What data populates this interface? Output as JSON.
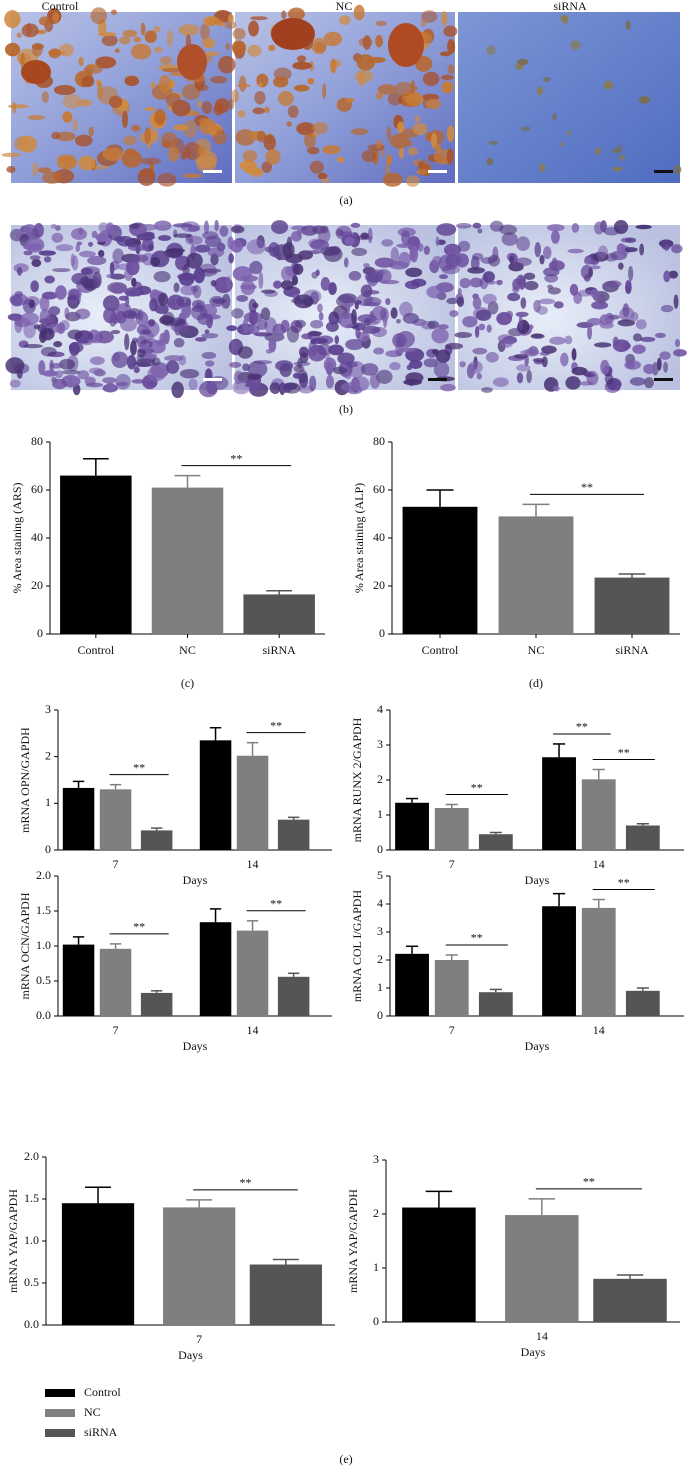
{
  "figure": {
    "panel_a": {
      "label": "(a)",
      "columns": [
        "Control",
        "NC",
        "siRNA"
      ]
    },
    "panel_b_label": "(b)",
    "panel_e_label": "(e)"
  },
  "legend": [
    {
      "name": "Control",
      "color": "#000000"
    },
    {
      "name": "NC",
      "color": "#7f7f7f"
    },
    {
      "name": "siRNA",
      "color": "#555555"
    }
  ],
  "chart_data": [
    {
      "type": "bar",
      "panel_label": "(c)",
      "ylabel": "% Area staining (ARS)",
      "categories": [
        "Control",
        "NC",
        "siRNA"
      ],
      "values": [
        66,
        61,
        16.5
      ],
      "errors": [
        7,
        5,
        1.5
      ],
      "colors": [
        "#000000",
        "#7f7f7f",
        "#555555"
      ],
      "ylim": [
        0,
        80
      ],
      "yticks": [
        0,
        20,
        40,
        60,
        80
      ],
      "annotations": [
        {
          "text": "**",
          "between": [
            1,
            2
          ]
        }
      ]
    },
    {
      "type": "bar",
      "panel_label": "(d)",
      "ylabel": "% Area staining (ALP)",
      "categories": [
        "Control",
        "NC",
        "siRNA"
      ],
      "values": [
        53,
        49,
        23.5
      ],
      "errors": [
        7,
        5,
        1.5
      ],
      "colors": [
        "#000000",
        "#7f7f7f",
        "#555555"
      ],
      "ylim": [
        0,
        80
      ],
      "yticks": [
        0,
        20,
        40,
        60,
        80
      ],
      "annotations": [
        {
          "text": "**",
          "between": [
            1,
            2
          ]
        }
      ]
    },
    {
      "type": "grouped_bar",
      "ylabel": "mRNA OPN/GAPDH",
      "xlabel": "Days",
      "categories": [
        "7",
        "14"
      ],
      "series": [
        {
          "values": [
            1.33,
            2.35
          ],
          "errors": [
            0.14,
            0.27
          ]
        },
        {
          "values": [
            1.3,
            2.02
          ],
          "errors": [
            0.1,
            0.28
          ]
        },
        {
          "values": [
            0.42,
            0.65
          ],
          "errors": [
            0.05,
            0.05
          ]
        }
      ],
      "ylim": [
        0,
        3
      ],
      "yticks": [
        0,
        1,
        2,
        3
      ],
      "annotations": [
        {
          "text": "**",
          "group": 0,
          "between": [
            1,
            2
          ]
        },
        {
          "text": "**",
          "group": 1,
          "between": [
            1,
            2
          ]
        }
      ]
    },
    {
      "type": "grouped_bar",
      "ylabel": "mRNA RUNX 2/GAPDH",
      "xlabel": "Days",
      "categories": [
        "7",
        "14"
      ],
      "series": [
        {
          "values": [
            1.35,
            2.65
          ],
          "errors": [
            0.12,
            0.38
          ]
        },
        {
          "values": [
            1.2,
            2.02
          ],
          "errors": [
            0.1,
            0.28
          ]
        },
        {
          "values": [
            0.45,
            0.7
          ],
          "errors": [
            0.05,
            0.05
          ]
        }
      ],
      "ylim": [
        0,
        4
      ],
      "yticks": [
        0,
        1,
        2,
        3,
        4
      ],
      "annotations": [
        {
          "text": "**",
          "group": 0,
          "between": [
            1,
            2
          ]
        },
        {
          "text": "**",
          "group": 1,
          "between": [
            0,
            1
          ]
        },
        {
          "text": "**",
          "group": 1,
          "between": [
            1,
            2
          ]
        }
      ]
    },
    {
      "type": "grouped_bar",
      "ylabel": "mRNA OCN/GAPDH",
      "xlabel": "Days",
      "categories": [
        "7",
        "14"
      ],
      "series": [
        {
          "values": [
            1.02,
            1.34
          ],
          "errors": [
            0.11,
            0.19
          ]
        },
        {
          "values": [
            0.96,
            1.22
          ],
          "errors": [
            0.07,
            0.14
          ]
        },
        {
          "values": [
            0.33,
            0.56
          ],
          "errors": [
            0.03,
            0.05
          ]
        }
      ],
      "ylim": [
        0,
        2
      ],
      "yticks": [
        {
          "value": 0,
          "label": "0.0"
        },
        0.5,
        {
          "value": 1,
          "label": "1.0"
        },
        1.5,
        {
          "value": 2,
          "label": "2.0"
        }
      ],
      "annotations": [
        {
          "text": "**",
          "group": 0,
          "between": [
            1,
            2
          ]
        },
        {
          "text": "**",
          "group": 1,
          "between": [
            1,
            2
          ]
        }
      ]
    },
    {
      "type": "grouped_bar",
      "ylabel": "mRNA COL I/GAPDH",
      "xlabel": "Days",
      "categories": [
        "7",
        "14"
      ],
      "series": [
        {
          "values": [
            2.22,
            3.92
          ],
          "errors": [
            0.27,
            0.45
          ]
        },
        {
          "values": [
            2.0,
            3.86
          ],
          "errors": [
            0.18,
            0.3
          ]
        },
        {
          "values": [
            0.85,
            0.9
          ],
          "errors": [
            0.1,
            0.1
          ]
        }
      ],
      "ylim": [
        0,
        5
      ],
      "yticks": [
        0,
        1,
        2,
        3,
        4,
        5
      ],
      "annotations": [
        {
          "text": "**",
          "group": 0,
          "between": [
            1,
            2
          ]
        },
        {
          "text": "**",
          "group": 1,
          "between": [
            1,
            2
          ]
        }
      ]
    },
    {
      "type": "grouped_bar",
      "ylabel": "mRNA YAP/GAPDH",
      "xlabel": "Days",
      "categories": [
        "7"
      ],
      "series": [
        {
          "values": [
            1.45
          ],
          "errors": [
            0.19
          ]
        },
        {
          "values": [
            1.4
          ],
          "errors": [
            0.09
          ]
        },
        {
          "values": [
            0.72
          ],
          "errors": [
            0.06
          ]
        }
      ],
      "ylim": [
        0,
        2
      ],
      "yticks": [
        {
          "value": 0,
          "label": "0.0"
        },
        0.5,
        {
          "value": 1,
          "label": "1.0"
        },
        1.5,
        {
          "value": 2,
          "label": "2.0"
        }
      ],
      "annotations": [
        {
          "text": "**",
          "group": 0,
          "between": [
            1,
            2
          ]
        }
      ]
    },
    {
      "type": "grouped_bar",
      "ylabel": "mRNA YAP/GAPDH",
      "xlabel": "Days",
      "categories": [
        "14"
      ],
      "series": [
        {
          "values": [
            2.12
          ],
          "errors": [
            0.3
          ]
        },
        {
          "values": [
            1.98
          ],
          "errors": [
            0.3
          ]
        },
        {
          "values": [
            0.8
          ],
          "errors": [
            0.07
          ]
        }
      ],
      "ylim": [
        0,
        3
      ],
      "yticks": [
        0,
        1,
        2,
        3
      ],
      "annotations": [
        {
          "text": "**",
          "group": 0,
          "between": [
            1,
            2
          ]
        }
      ]
    }
  ]
}
